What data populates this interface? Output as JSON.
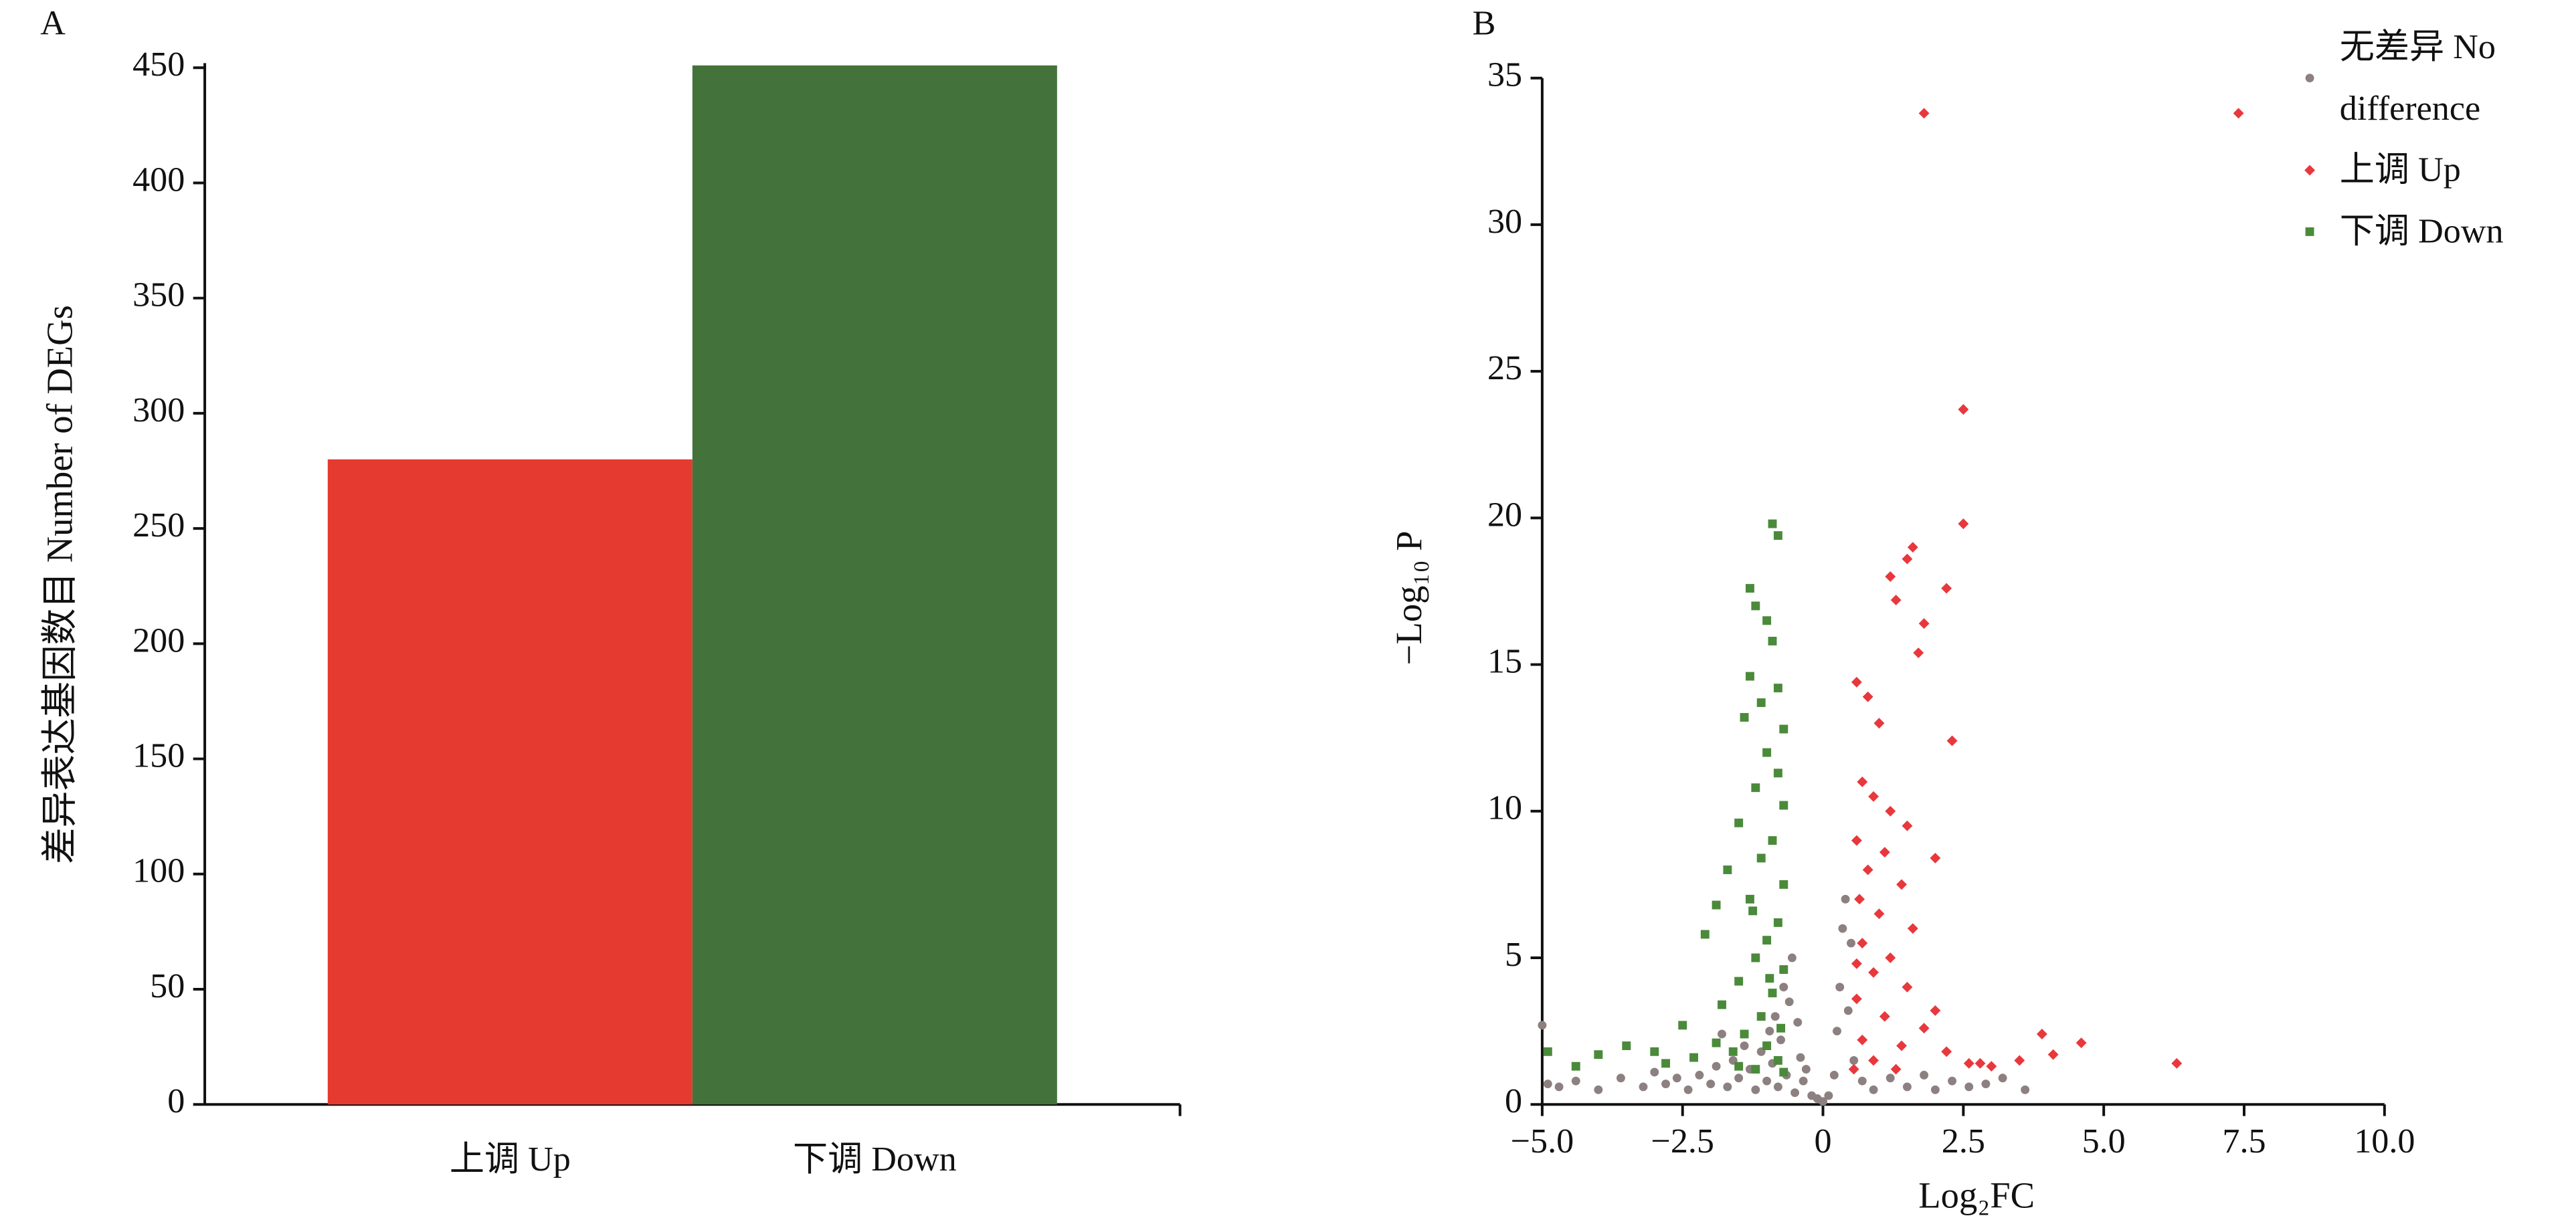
{
  "chart_data": [
    {
      "type": "bar",
      "panel": "A",
      "ylabel": "差异表达基因数目 Number of DEGs",
      "categories": [
        "上调 Up",
        "下调 Down"
      ],
      "values": [
        280,
        451
      ],
      "colors": [
        "#e53a30",
        "#43733a"
      ],
      "ylim": [
        0,
        452
      ],
      "yticks": [
        0,
        50,
        100,
        150,
        200,
        250,
        300,
        350,
        400,
        450
      ],
      "grid": false
    },
    {
      "type": "scatter",
      "panel": "B",
      "xlabel": "Log₂FC",
      "ylabel": "−Log₁₀ P",
      "xlim": [
        -5,
        10
      ],
      "ylim": [
        0,
        35
      ],
      "xticks": [
        {
          "value": -5,
          "label": "−5.0"
        },
        {
          "value": -2.5,
          "label": "−2.5"
        },
        0,
        2.5,
        {
          "value": 5,
          "label": "5.0"
        },
        7.5,
        {
          "value": 10,
          "label": "10.0"
        }
      ],
      "yticks": [
        0,
        5,
        10,
        15,
        20,
        25,
        30,
        35
      ],
      "grid": false,
      "legend": "top-right",
      "series": [
        {
          "name": "无差异 No difference",
          "color": "#8c8080",
          "marker": "circle",
          "x": [
            -4.9,
            -4.7,
            -4.4,
            -4.0,
            -3.6,
            -3.2,
            -3.0,
            -2.8,
            -2.6,
            -2.4,
            -2.2,
            -2.0,
            -1.9,
            -1.7,
            -1.6,
            -1.5,
            -1.4,
            -1.3,
            -1.2,
            -1.1,
            -1.0,
            -0.95,
            -0.9,
            -0.85,
            -0.8,
            -0.75,
            -0.7,
            -0.65,
            -0.6,
            -0.55,
            -0.5,
            -0.45,
            -0.4,
            -0.35,
            -0.3,
            -0.2,
            -0.1,
            0,
            0.1,
            0.2,
            0.25,
            0.3,
            0.35,
            0.4,
            0.45,
            0.5,
            0.55,
            0.7,
            0.9,
            1.2,
            1.5,
            1.8,
            2.0,
            2.3,
            2.6,
            2.9,
            3.2,
            3.6,
            -5.0,
            -1.8
          ],
          "values": [
            0.7,
            0.6,
            0.8,
            0.5,
            0.9,
            0.6,
            1.1,
            0.7,
            0.9,
            0.5,
            1.0,
            0.7,
            1.3,
            0.6,
            1.5,
            0.9,
            2.0,
            1.2,
            0.5,
            1.8,
            0.8,
            2.5,
            1.4,
            3.0,
            0.6,
            2.2,
            4.0,
            1.0,
            3.5,
            5.0,
            0.4,
            2.8,
            1.6,
            0.8,
            1.2,
            0.3,
            0.2,
            0.1,
            0.3,
            1.0,
            2.5,
            4.0,
            6.0,
            7.0,
            3.2,
            5.5,
            1.5,
            0.8,
            0.5,
            0.9,
            0.6,
            1.0,
            0.5,
            0.8,
            0.6,
            0.7,
            0.9,
            0.5,
            2.7,
            2.4
          ]
        },
        {
          "name": "上调 Up",
          "color": "#e8383d",
          "marker": "diamond",
          "x": [
            1.8,
            7.4,
            2.5,
            2.5,
            1.6,
            1.5,
            1.2,
            2.2,
            1.3,
            1.8,
            1.7,
            0.6,
            0.8,
            1.0,
            2.3,
            0.7,
            0.9,
            1.2,
            1.5,
            0.6,
            1.1,
            2.0,
            0.8,
            1.4,
            0.65,
            1.0,
            1.6,
            0.7,
            1.2,
            0.9,
            1.5,
            0.6,
            2.0,
            1.1,
            1.8,
            0.7,
            1.4,
            2.2,
            0.9,
            2.6,
            3.0,
            3.5,
            3.9,
            4.1,
            4.6,
            6.3,
            0.55,
            1.3,
            2.8,
            0.6
          ],
          "values": [
            33.8,
            33.8,
            23.7,
            19.8,
            19.0,
            18.6,
            18.0,
            17.6,
            17.2,
            16.4,
            15.4,
            14.4,
            13.9,
            13.0,
            12.4,
            11.0,
            10.5,
            10.0,
            9.5,
            9.0,
            8.6,
            8.4,
            8.0,
            7.5,
            7.0,
            6.5,
            6.0,
            5.5,
            5.0,
            4.5,
            4.0,
            3.6,
            3.2,
            3.0,
            2.6,
            2.2,
            2.0,
            1.8,
            1.5,
            1.4,
            1.3,
            1.5,
            2.4,
            1.7,
            2.1,
            1.4,
            1.2,
            1.2,
            1.4,
            4.8
          ]
        },
        {
          "name": "下调 Down",
          "color": "#4a8a3a",
          "marker": "square",
          "x": [
            -0.9,
            -0.8,
            -1.3,
            -1.2,
            -1.0,
            -0.9,
            -1.3,
            -0.8,
            -1.1,
            -1.4,
            -0.7,
            -1.0,
            -0.8,
            -1.2,
            -0.7,
            -1.5,
            -0.9,
            -1.1,
            -1.7,
            -0.7,
            -1.3,
            -1.9,
            -0.8,
            -1.0,
            -2.1,
            -1.2,
            -0.7,
            -1.5,
            -0.9,
            -1.8,
            -1.1,
            -0.75,
            -1.4,
            -2.5,
            -1.0,
            -1.6,
            -2.8,
            -0.8,
            -1.2,
            -3.5,
            -4.0,
            -4.4,
            -4.9,
            -2.3,
            -3.0,
            -1.9,
            -0.7,
            -1.5,
            -0.95,
            -1.25
          ],
          "values": [
            19.8,
            19.4,
            17.6,
            17.0,
            16.5,
            15.8,
            14.6,
            14.2,
            13.7,
            13.2,
            12.8,
            12.0,
            11.3,
            10.8,
            10.2,
            9.6,
            9.0,
            8.4,
            8.0,
            7.5,
            7.0,
            6.8,
            6.2,
            5.6,
            5.8,
            5.0,
            4.6,
            4.2,
            3.8,
            3.4,
            3.0,
            2.6,
            2.4,
            2.7,
            2.0,
            1.8,
            1.4,
            1.5,
            1.2,
            2.0,
            1.7,
            1.3,
            1.8,
            1.6,
            1.8,
            2.1,
            1.1,
            1.3,
            4.3,
            6.6
          ]
        }
      ]
    }
  ]
}
